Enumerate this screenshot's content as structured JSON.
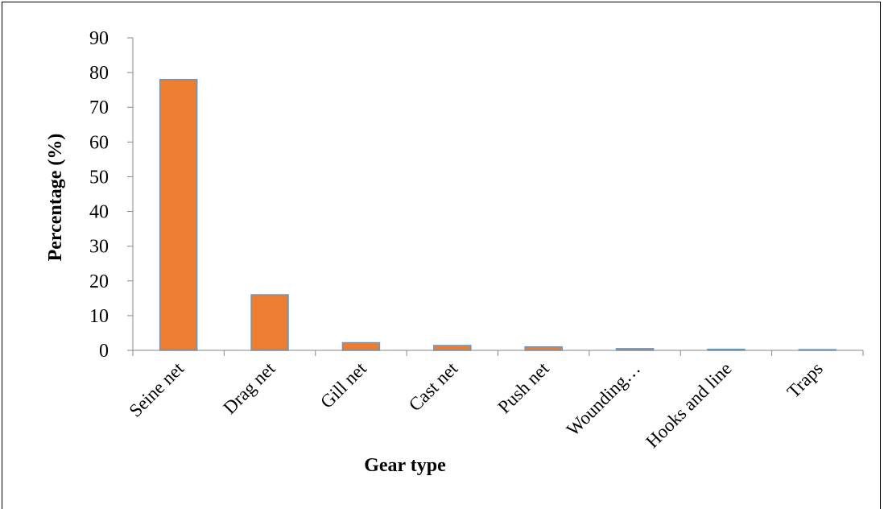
{
  "chart_data": {
    "type": "bar",
    "title": "",
    "xlabel": "Gear type",
    "ylabel": "Percentage (%)",
    "categories": [
      "Seine net",
      "Drag net",
      "Gill net",
      "Cast net",
      "Push net",
      "Wounding…",
      "Hooks and line",
      "Traps"
    ],
    "values": [
      78,
      16,
      2.2,
      1.4,
      1.0,
      0.5,
      0.3,
      0.2
    ],
    "ylim": [
      0,
      90
    ],
    "yticks": [
      "0",
      "10",
      "20",
      "30",
      "40",
      "50",
      "60",
      "70",
      "80",
      "90"
    ],
    "grid": false,
    "legend": "none",
    "bar_color": "#ED7D31",
    "bar_edge_color": "#5B9BD5"
  }
}
